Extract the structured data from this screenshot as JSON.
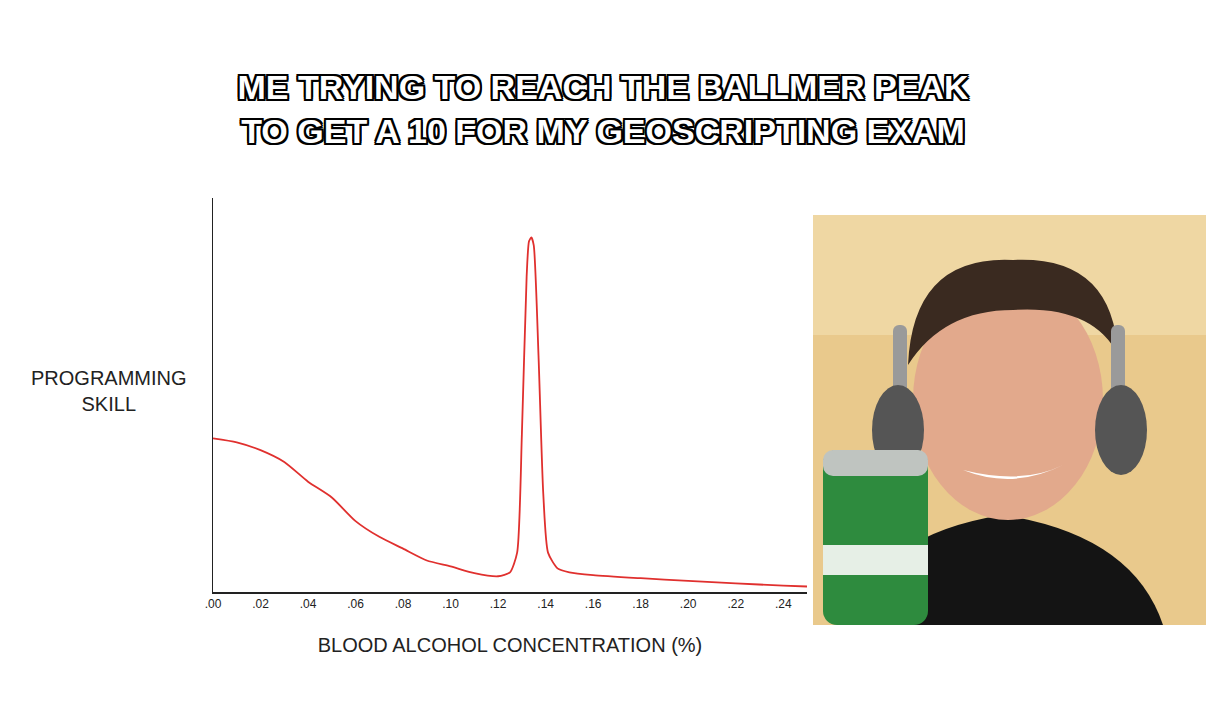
{
  "chart_data": {
    "type": "line",
    "title": [
      "ME TRYING TO REACH THE BALLMER PEAK",
      "TO GET A 10 FOR MY GEOSCRIPTING EXAM"
    ],
    "x_label": "BLOOD ALCOHOL CONCENTRATION (%)",
    "y_label": [
      "PROGRAMMING",
      "SKILL"
    ],
    "x": [
      0.0,
      0.01,
      0.02,
      0.03,
      0.04,
      0.05,
      0.06,
      0.07,
      0.08,
      0.09,
      0.1,
      0.11,
      0.12,
      0.125,
      0.128,
      0.13,
      0.132,
      0.133,
      0.134,
      0.135,
      0.137,
      0.139,
      0.141,
      0.145,
      0.15,
      0.16,
      0.18,
      0.2,
      0.22,
      0.24,
      0.25
    ],
    "values": [
      39,
      38,
      36,
      33,
      28,
      24,
      18,
      14,
      11,
      8,
      6.5,
      4.8,
      4,
      5,
      10,
      40,
      80,
      89,
      90,
      88,
      60,
      25,
      10,
      6,
      5,
      4.3,
      3.5,
      2.8,
      2.2,
      1.6,
      1.4
    ],
    "color": "#e0302e",
    "line_style": "solid",
    "xlim": [
      0,
      0.25
    ],
    "ylim": [
      0,
      100
    ],
    "xticks": [
      {
        "value": 0.0,
        "label": ".00"
      },
      {
        "value": 0.02,
        "label": ".02"
      },
      {
        "value": 0.04,
        "label": ".04"
      },
      {
        "value": 0.06,
        "label": ".06"
      },
      {
        "value": 0.08,
        "label": ".08"
      },
      {
        "value": 0.1,
        "label": ".10"
      },
      {
        "value": 0.12,
        "label": ".12"
      },
      {
        "value": 0.14,
        "label": ".14"
      },
      {
        "value": 0.16,
        "label": ".16"
      },
      {
        "value": 0.18,
        "label": ".18"
      },
      {
        "value": 0.2,
        "label": ".20"
      },
      {
        "value": 0.22,
        "label": ".22"
      },
      {
        "value": 0.24,
        "label": ".24"
      }
    ],
    "grid": false,
    "tick_labels": "x"
  }
}
